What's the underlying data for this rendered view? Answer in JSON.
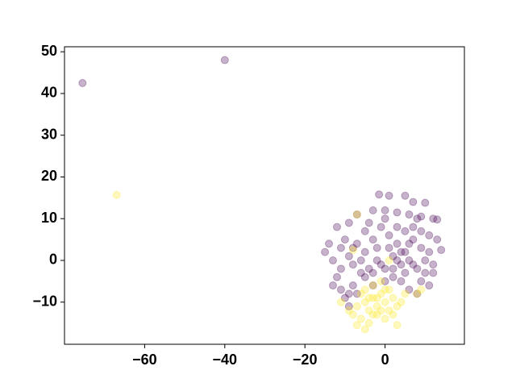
{
  "chart_data": {
    "type": "scatter",
    "xlim": [
      -80,
      19.8
    ],
    "ylim": [
      -20.1,
      51.2
    ],
    "xticks": [
      {
        "value": -60,
        "label": "−60"
      },
      {
        "value": -40,
        "label": "−40"
      },
      {
        "value": -20,
        "label": "−20"
      },
      0
    ],
    "yticks": [
      {
        "value": -10,
        "label": "−10"
      },
      0,
      10,
      20,
      30,
      40,
      50
    ],
    "grid": false,
    "series": [
      {
        "color": "#440154",
        "x": [
          -75.5,
          -40,
          -1.5,
          1,
          5,
          7,
          10,
          -3,
          0,
          3,
          6,
          9,
          12,
          13,
          -7,
          -9,
          -12,
          -14,
          -15,
          -13,
          -11,
          -9,
          -7,
          -5,
          -3,
          -1,
          1,
          3,
          5,
          7,
          9,
          11,
          13,
          14,
          12,
          10,
          8,
          6,
          4,
          2,
          0,
          -2,
          -4,
          -6,
          -8,
          -10,
          -12,
          -13,
          -11,
          -9,
          -8,
          -10,
          -9,
          -7,
          -5,
          -3,
          0,
          2,
          4,
          6,
          8,
          11,
          12,
          -1,
          1,
          3,
          5,
          7,
          9,
          -2,
          -6,
          -8,
          2,
          4,
          6,
          8,
          10,
          -4,
          -11,
          0,
          3,
          5,
          -5,
          -3,
          7,
          11,
          9
        ],
        "values": [
          42.5,
          48,
          15.8,
          15.5,
          15.5,
          14,
          13.8,
          12,
          12,
          11.5,
          11,
          10.5,
          10,
          9.8,
          11,
          9,
          8,
          4,
          2,
          0,
          -2,
          1,
          4,
          7,
          5,
          8,
          6,
          4,
          7,
          5,
          3,
          6,
          5,
          2.5,
          -1,
          -3,
          -2,
          0,
          -1,
          1,
          -2,
          0,
          -2,
          0,
          3,
          5,
          -4,
          -6,
          -7,
          -8,
          -6,
          -9,
          -11,
          -8,
          -4,
          -6,
          -5,
          -4,
          -5,
          -7,
          -8,
          -6,
          -3,
          -1,
          3,
          8,
          2,
          -1,
          7,
          3,
          -3,
          -1,
          -2,
          2,
          4,
          10,
          0,
          9,
          3,
          10,
          0,
          -3,
          2,
          -3,
          8,
          2,
          -5
        ]
      },
      {
        "color": "#fde725",
        "x": [
          -67,
          -6,
          -5,
          -4,
          -3,
          -2,
          -1,
          0,
          1,
          2,
          3,
          -7,
          -8,
          -6,
          -4,
          -2,
          0,
          2,
          -5,
          -3,
          -1,
          1,
          -9,
          -11,
          4,
          5,
          8,
          9,
          -5,
          -7,
          3,
          -8,
          -7,
          1,
          -3,
          -1,
          -2,
          -4,
          0
        ],
        "values": [
          15.7,
          -8,
          -10,
          -12,
          -9,
          -11,
          -8,
          -10,
          -12,
          -9,
          -11,
          -11,
          -13,
          -14,
          -15,
          -13,
          -14,
          -13,
          -7,
          -6,
          -5,
          -7,
          -12,
          -10,
          -10,
          -8,
          -8,
          -7,
          -16.5,
          -15.5,
          -15.5,
          2.5,
          11,
          0,
          -13,
          -12,
          -9,
          -9,
          -7
        ]
      }
    ]
  }
}
